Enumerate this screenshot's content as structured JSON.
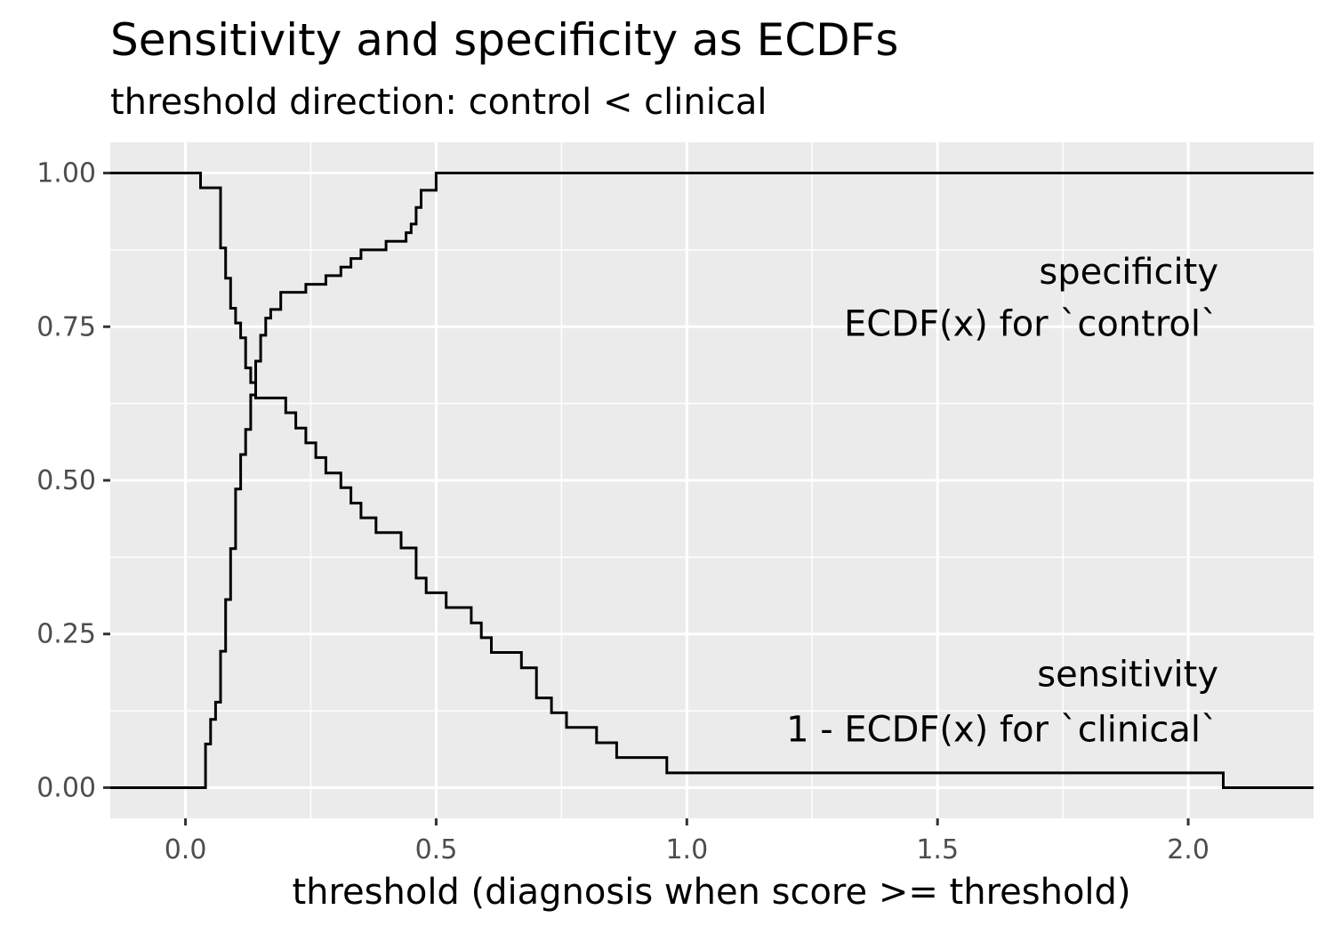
{
  "chart_data": {
    "type": "line",
    "step": true,
    "title": "Sensitivity and specificity as ECDFs",
    "subtitle": "threshold direction: control < clinical",
    "xlabel": "threshold (diagnosis when score >= threshold)",
    "ylabel": "",
    "xlim": [
      -0.15,
      2.25
    ],
    "ylim": [
      -0.05,
      1.05
    ],
    "xticks": [
      0.0,
      0.5,
      1.0,
      1.5,
      2.0
    ],
    "xtick_labels": [
      "0.0",
      "0.5",
      "1.0",
      "1.5",
      "2.0"
    ],
    "yticks": [
      0.0,
      0.25,
      0.5,
      0.75,
      1.0
    ],
    "ytick_labels": [
      "0.00",
      "0.25",
      "0.50",
      "0.75",
      "1.00"
    ],
    "grid": true,
    "legend": "none",
    "colors": {
      "panel": "#ebebeb",
      "grid": "#ffffff",
      "line": "#000000"
    },
    "series": [
      {
        "x": [
          -0.15,
          0.03,
          0.07,
          0.07,
          0.08,
          0.09,
          0.1,
          0.11,
          0.12,
          0.13,
          0.14,
          0.15,
          0.16,
          0.18,
          0.2,
          0.22,
          0.24,
          0.26,
          0.28,
          0.31,
          0.33,
          0.35,
          0.38,
          0.43,
          0.46,
          0.48,
          0.52,
          0.57,
          0.59,
          0.61,
          0.67,
          0.7,
          0.73,
          0.76,
          0.82,
          0.86,
          0.96,
          2.07,
          2.25
        ],
        "y": [
          1.0,
          0.976,
          0.902,
          0.878,
          0.829,
          0.78,
          0.756,
          0.732,
          0.683,
          0.659,
          0.634,
          0.634,
          0.634,
          0.634,
          0.61,
          0.585,
          0.561,
          0.537,
          0.512,
          0.488,
          0.463,
          0.439,
          0.415,
          0.39,
          0.341,
          0.317,
          0.293,
          0.268,
          0.244,
          0.22,
          0.195,
          0.146,
          0.122,
          0.098,
          0.073,
          0.049,
          0.024,
          0.0,
          0.0
        ],
        "annotation": [
          "sensitivity",
          "1 - ECDF(x) for `clinical`"
        ]
      },
      {
        "x": [
          -0.15,
          0.04,
          0.05,
          0.06,
          0.07,
          0.08,
          0.09,
          0.1,
          0.11,
          0.12,
          0.13,
          0.14,
          0.15,
          0.16,
          0.17,
          0.19,
          0.2,
          0.21,
          0.24,
          0.28,
          0.31,
          0.33,
          0.35,
          0.38,
          0.4,
          0.43,
          0.44,
          0.45,
          0.46,
          0.47,
          0.5,
          2.25
        ],
        "y": [
          0.0,
          0.071,
          0.111,
          0.139,
          0.222,
          0.306,
          0.389,
          0.486,
          0.542,
          0.583,
          0.639,
          0.694,
          0.736,
          0.764,
          0.778,
          0.806,
          0.806,
          0.806,
          0.819,
          0.833,
          0.847,
          0.861,
          0.875,
          0.875,
          0.889,
          0.889,
          0.903,
          0.917,
          0.944,
          0.972,
          1.0,
          1.0
        ],
        "annotation": [
          "specificity",
          "ECDF(x) for `control`"
        ]
      }
    ]
  }
}
